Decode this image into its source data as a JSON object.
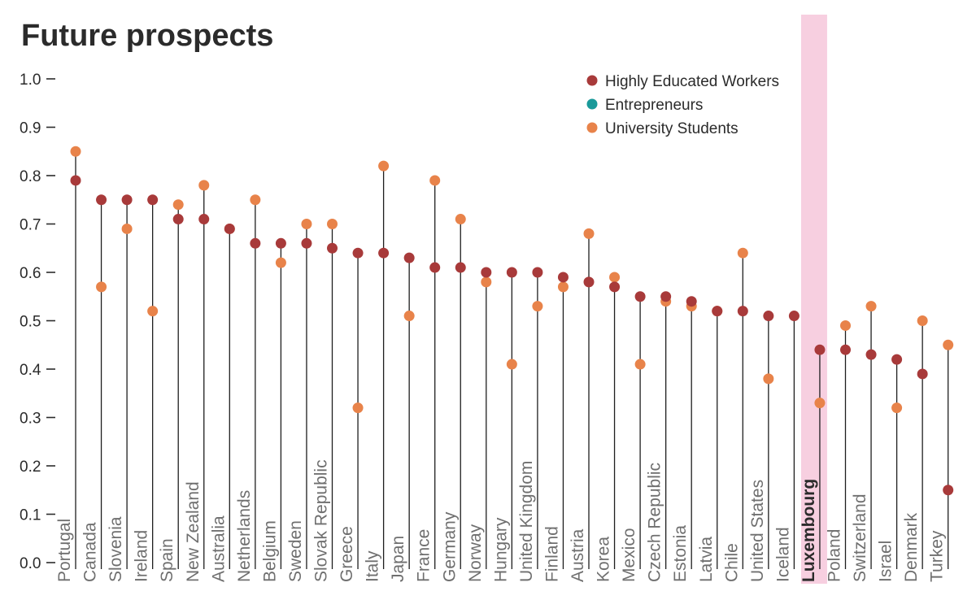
{
  "chart_data": {
    "type": "scatter",
    "title": "Future prospects",
    "ylim": [
      0,
      1
    ],
    "yticks": [
      "0.0",
      "0.1",
      "0.2",
      "0.3",
      "0.4",
      "0.5",
      "0.6",
      "0.7",
      "0.8",
      "0.9",
      "1.0"
    ],
    "highlight_category": "Luxembourg",
    "categories": [
      "Portugal",
      "Canada",
      "Slovenia",
      "Ireland",
      "Spain",
      "New Zealand",
      "Australia",
      "Netherlands",
      "Belgium",
      "Sweden",
      "Slovak Republic",
      "Greece",
      "Italy",
      "Japan",
      "France",
      "Germany",
      "Norway",
      "Hungary",
      "United Kingdom",
      "Finland",
      "Austria",
      "Korea",
      "Mexico",
      "Czech Republic",
      "Estonia",
      "Latvia",
      "Chile",
      "United States",
      "Iceland",
      "Luxembourg",
      "Poland",
      "Switzerland",
      "Israel",
      "Denmark",
      "Turkey"
    ],
    "series": [
      {
        "name": "Highly Educated Workers",
        "color": "#a83a3a",
        "values": [
          0.79,
          0.75,
          0.75,
          0.75,
          0.71,
          0.71,
          0.69,
          0.66,
          0.66,
          0.66,
          0.65,
          0.64,
          0.64,
          0.63,
          0.61,
          0.61,
          0.6,
          0.6,
          0.6,
          0.59,
          0.58,
          0.57,
          0.55,
          0.55,
          0.54,
          0.52,
          0.52,
          0.51,
          0.51,
          0.44,
          0.44,
          0.43,
          0.42,
          0.39,
          0.15
        ]
      },
      {
        "name": "Entrepreneurs",
        "color": "#1a9a9a",
        "values": []
      },
      {
        "name": "University Students",
        "color": "#e8834a",
        "values": [
          0.85,
          0.57,
          0.69,
          0.52,
          0.74,
          0.78,
          0.69,
          0.75,
          0.62,
          0.7,
          0.7,
          0.32,
          0.82,
          0.51,
          0.79,
          0.71,
          0.58,
          0.41,
          0.53,
          0.57,
          0.68,
          0.59,
          0.41,
          0.54,
          0.53,
          0.52,
          0.64,
          0.38,
          null,
          0.33,
          0.49,
          0.53,
          0.32,
          0.5,
          0.45
        ]
      }
    ],
    "legend_position": "top-right",
    "grid": false
  },
  "colors": {
    "text": "#2b2b2b",
    "line": "#1e1e1e",
    "highlight": "#f7cfe0",
    "category_label": "#6f6f6f"
  }
}
